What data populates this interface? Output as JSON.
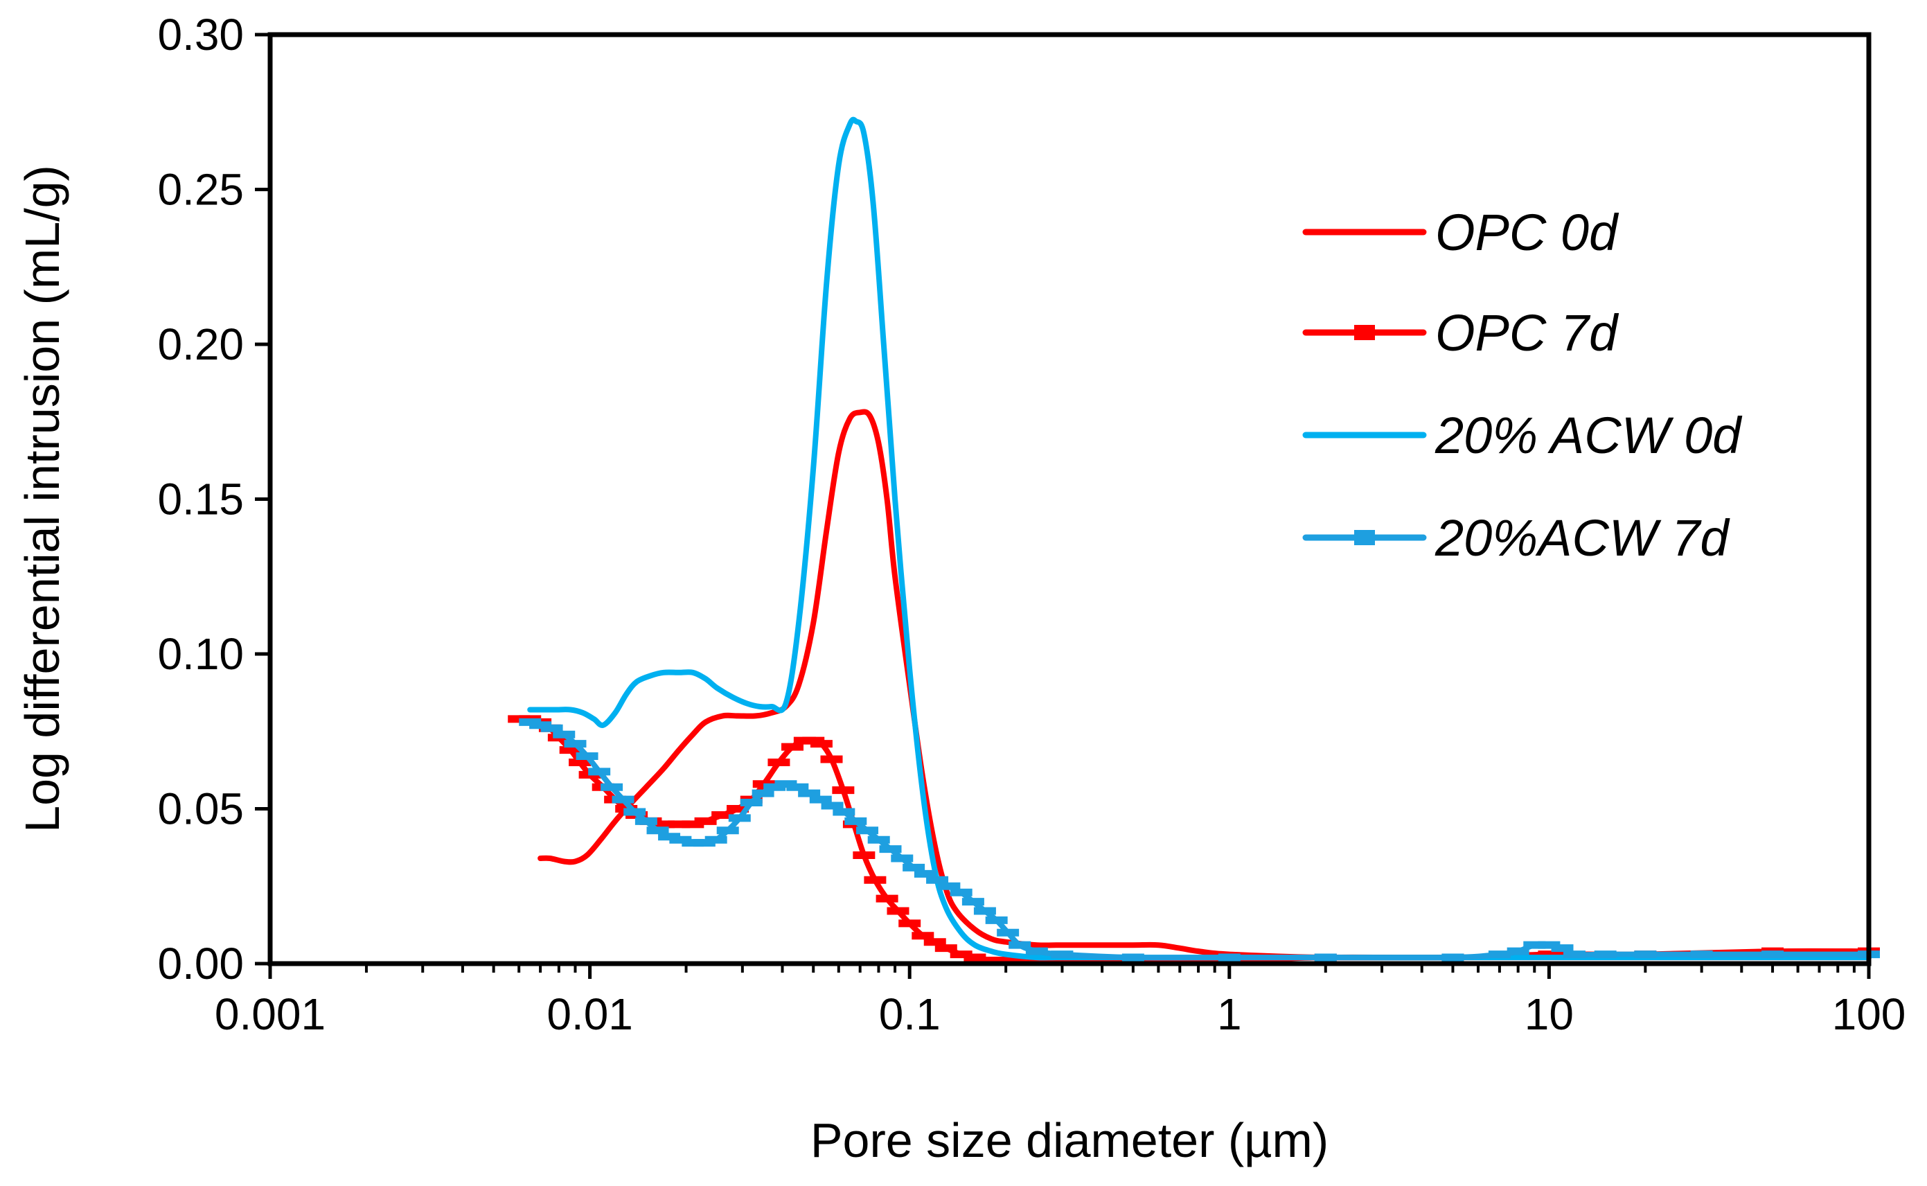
{
  "chart_data": {
    "type": "line",
    "title": "",
    "xlabel": "Pore size diameter (µm)",
    "ylabel": "Log differential intrusion  (mL/g)",
    "xscale": "log",
    "xlim": [
      0.001,
      100
    ],
    "ylim": [
      0,
      0.3
    ],
    "grid": false,
    "legend_position": "top-right",
    "x_ticks": [
      0.001,
      0.01,
      0.1,
      1,
      10,
      100
    ],
    "x_tick_labels": [
      "0.001",
      "0.01",
      "0.1",
      "1",
      "10",
      "100"
    ],
    "y_ticks": [
      0,
      0.05,
      0.1,
      0.15,
      0.2,
      0.25,
      0.3
    ],
    "y_tick_labels": [
      "0.00",
      "0.05",
      "0.10",
      "0.15",
      "0.20",
      "0.25",
      "0.30"
    ],
    "series": [
      {
        "name": "OPC 0d",
        "color": "#ff0000",
        "marker": "none",
        "x": [
          0.007,
          0.0075,
          0.0083,
          0.009,
          0.0098,
          0.0108,
          0.012,
          0.0135,
          0.015,
          0.017,
          0.019,
          0.021,
          0.023,
          0.026,
          0.029,
          0.033,
          0.037,
          0.041,
          0.045,
          0.05,
          0.055,
          0.06,
          0.065,
          0.07,
          0.075,
          0.08,
          0.085,
          0.09,
          0.1,
          0.11,
          0.12,
          0.13,
          0.14,
          0.16,
          0.18,
          0.2,
          0.25,
          0.3,
          0.4,
          0.5,
          0.6,
          0.7,
          0.8,
          1,
          2,
          5,
          10,
          20,
          50,
          100
        ],
        "values": [
          0.034,
          0.034,
          0.033,
          0.033,
          0.035,
          0.04,
          0.046,
          0.052,
          0.057,
          0.063,
          0.069,
          0.074,
          0.078,
          0.08,
          0.08,
          0.08,
          0.081,
          0.083,
          0.09,
          0.11,
          0.14,
          0.165,
          0.176,
          0.178,
          0.177,
          0.168,
          0.15,
          0.125,
          0.09,
          0.06,
          0.038,
          0.024,
          0.017,
          0.011,
          0.008,
          0.007,
          0.006,
          0.006,
          0.006,
          0.006,
          0.006,
          0.005,
          0.004,
          0.003,
          0.002,
          0.002,
          0.002,
          0.002,
          0.002,
          0.002
        ]
      },
      {
        "name": "OPC 7d",
        "color": "#ff0000",
        "marker": "dash",
        "x": [
          0.006,
          0.0065,
          0.007,
          0.0075,
          0.008,
          0.0087,
          0.0093,
          0.01,
          0.011,
          0.012,
          0.013,
          0.014,
          0.0155,
          0.017,
          0.019,
          0.021,
          0.023,
          0.026,
          0.029,
          0.032,
          0.035,
          0.039,
          0.043,
          0.047,
          0.05,
          0.053,
          0.057,
          0.062,
          0.067,
          0.072,
          0.078,
          0.085,
          0.092,
          0.1,
          0.11,
          0.12,
          0.13,
          0.145,
          0.16,
          0.18,
          0.2,
          0.25,
          0.3,
          0.5,
          1,
          2,
          5,
          10,
          20,
          50,
          100
        ],
        "values": [
          0.079,
          0.079,
          0.078,
          0.076,
          0.073,
          0.069,
          0.065,
          0.061,
          0.057,
          0.053,
          0.05,
          0.048,
          0.046,
          0.045,
          0.045,
          0.045,
          0.046,
          0.048,
          0.05,
          0.053,
          0.058,
          0.065,
          0.07,
          0.072,
          0.072,
          0.071,
          0.066,
          0.056,
          0.045,
          0.035,
          0.027,
          0.021,
          0.017,
          0.013,
          0.009,
          0.007,
          0.005,
          0.003,
          0.002,
          0.001,
          0.001,
          0.001,
          0.001,
          0.001,
          0.001,
          0.002,
          0.002,
          0.003,
          0.003,
          0.004,
          0.004
        ]
      },
      {
        "name": "20% ACW 0d",
        "color": "#00b0f0",
        "marker": "none",
        "x": [
          0.0065,
          0.007,
          0.0078,
          0.0087,
          0.0095,
          0.0103,
          0.011,
          0.012,
          0.013,
          0.014,
          0.0155,
          0.017,
          0.019,
          0.021,
          0.023,
          0.025,
          0.028,
          0.031,
          0.034,
          0.037,
          0.041,
          0.045,
          0.05,
          0.055,
          0.06,
          0.065,
          0.068,
          0.072,
          0.077,
          0.083,
          0.09,
          0.1,
          0.11,
          0.12,
          0.13,
          0.145,
          0.16,
          0.18,
          0.2,
          0.25,
          0.3,
          0.5,
          1,
          2,
          5,
          10,
          20,
          50,
          100
        ],
        "values": [
          0.082,
          0.082,
          0.082,
          0.082,
          0.081,
          0.079,
          0.077,
          0.081,
          0.087,
          0.091,
          0.093,
          0.094,
          0.094,
          0.094,
          0.092,
          0.089,
          0.086,
          0.084,
          0.083,
          0.083,
          0.084,
          0.11,
          0.16,
          0.22,
          0.258,
          0.271,
          0.272,
          0.268,
          0.245,
          0.2,
          0.15,
          0.095,
          0.055,
          0.03,
          0.018,
          0.01,
          0.006,
          0.004,
          0.003,
          0.002,
          0.002,
          0.002,
          0.002,
          0.002,
          0.002,
          0.002,
          0.002,
          0.002,
          0.002
        ]
      },
      {
        "name": "20%ACW 7d",
        "color": "#1e9fe0",
        "marker": "dash",
        "x": [
          0.0065,
          0.007,
          0.0076,
          0.0083,
          0.009,
          0.0098,
          0.0107,
          0.0117,
          0.0127,
          0.0138,
          0.015,
          0.0163,
          0.0177,
          0.0192,
          0.021,
          0.0228,
          0.0248,
          0.027,
          0.0294,
          0.032,
          0.0348,
          0.0378,
          0.041,
          0.0446,
          0.0485,
          0.0527,
          0.0573,
          0.0623,
          0.0678,
          0.0737,
          0.0801,
          0.0871,
          0.0947,
          0.103,
          0.112,
          0.122,
          0.133,
          0.145,
          0.158,
          0.172,
          0.187,
          0.203,
          0.221,
          0.25,
          0.3,
          0.5,
          1,
          2,
          5,
          7,
          8,
          9,
          10,
          11,
          12,
          15,
          20,
          30,
          50,
          100
        ],
        "values": [
          0.078,
          0.077,
          0.076,
          0.074,
          0.071,
          0.067,
          0.062,
          0.057,
          0.053,
          0.049,
          0.046,
          0.043,
          0.041,
          0.04,
          0.039,
          0.039,
          0.04,
          0.043,
          0.047,
          0.052,
          0.055,
          0.057,
          0.058,
          0.057,
          0.055,
          0.053,
          0.051,
          0.049,
          0.046,
          0.043,
          0.04,
          0.037,
          0.034,
          0.031,
          0.029,
          0.027,
          0.025,
          0.023,
          0.02,
          0.017,
          0.014,
          0.01,
          0.006,
          0.004,
          0.003,
          0.002,
          0.002,
          0.002,
          0.002,
          0.003,
          0.004,
          0.006,
          0.006,
          0.005,
          0.003,
          0.003,
          0.003,
          0.003,
          0.003,
          0.003
        ]
      }
    ]
  }
}
